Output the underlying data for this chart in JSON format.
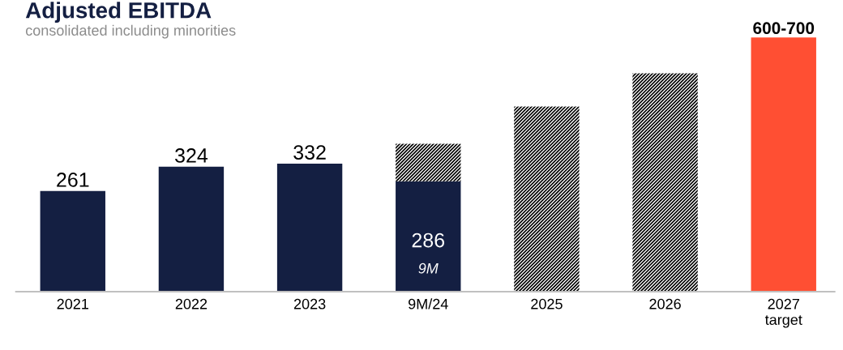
{
  "chart_data": {
    "type": "bar",
    "title": "Adjusted EBITDA",
    "subtitle": "consolidated including minorities",
    "categories": [
      "2021",
      "2022",
      "2023",
      "9M/24",
      "2025",
      "2026",
      "2027\ntarget"
    ],
    "stacked": true,
    "series": [
      {
        "color": "#141f42",
        "values": [
          261,
          324,
          332,
          286,
          null,
          null,
          null
        ],
        "value_labels": [
          "261",
          "324",
          "332",
          "286",
          null,
          null,
          null
        ]
      },
      {
        "color": "#000000",
        "values": [
          null,
          null,
          null,
          97,
          480,
          566,
          null
        ]
      },
      {
        "color": "#ff4f33",
        "values": [
          null,
          null,
          null,
          null,
          null,
          null,
          659
        ],
        "value_labels": [
          null,
          null,
          null,
          null,
          null,
          null,
          "600-700"
        ]
      }
    ],
    "annotations": [
      "9M"
    ],
    "grid": false,
    "legend": false
  }
}
